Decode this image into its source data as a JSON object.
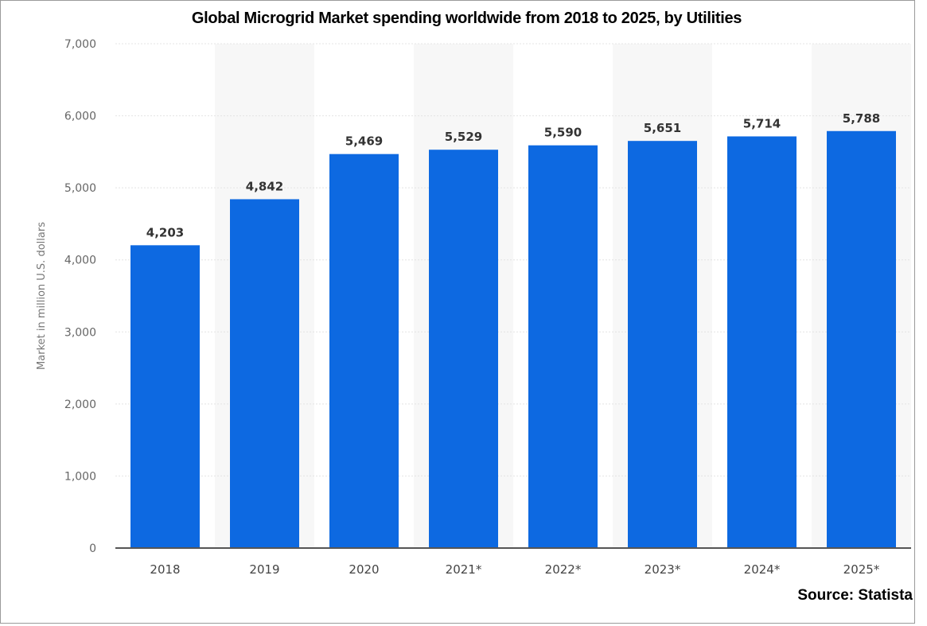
{
  "chart_data": {
    "type": "bar",
    "title": "Global Microgrid Market spending worldwide from 2018 to 2025, by Utilities",
    "xlabel": "",
    "ylabel": "Market in million U.S. dollars",
    "categories": [
      "2018",
      "2019",
      "2020",
      "2021*",
      "2022*",
      "2023*",
      "2024*",
      "2025*"
    ],
    "values": [
      4203,
      4842,
      5469,
      5529,
      5590,
      5651,
      5714,
      5788
    ],
    "value_labels": [
      "4,203",
      "4,842",
      "5,469",
      "5,529",
      "5,590",
      "5,651",
      "5,714",
      "5,788"
    ],
    "ylim": [
      0,
      7000
    ],
    "yticks": [
      0,
      1000,
      2000,
      3000,
      4000,
      5000,
      6000,
      7000
    ],
    "ytick_labels": [
      "0",
      "1,000",
      "2,000",
      "3,000",
      "4,000",
      "5,000",
      "6,000",
      "7,000"
    ],
    "grid": true,
    "bar_color": "#0d69e1",
    "band_color": "#f7f7f7",
    "source": "Source: Statista"
  }
}
